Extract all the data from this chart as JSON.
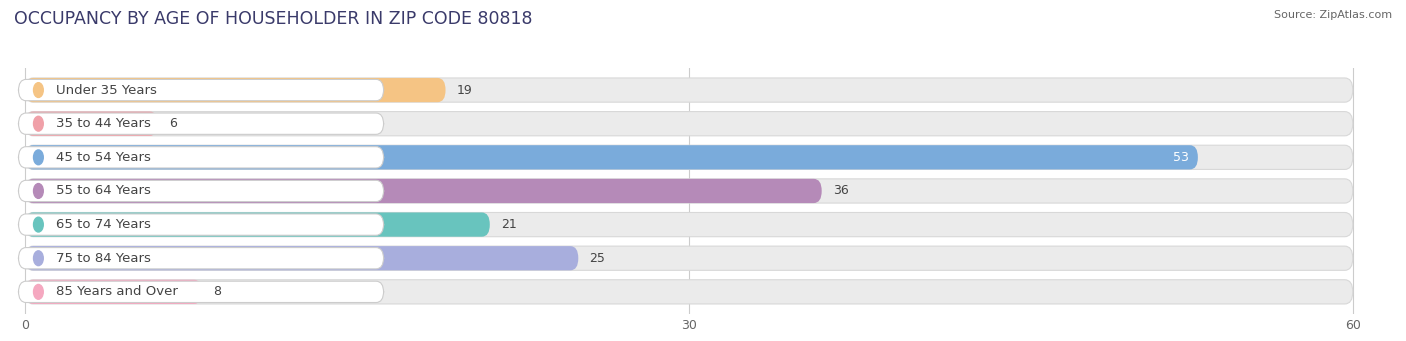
{
  "title": "OCCUPANCY BY AGE OF HOUSEHOLDER IN ZIP CODE 80818",
  "source": "Source: ZipAtlas.com",
  "categories": [
    "Under 35 Years",
    "35 to 44 Years",
    "45 to 54 Years",
    "55 to 64 Years",
    "65 to 74 Years",
    "75 to 84 Years",
    "85 Years and Over"
  ],
  "values": [
    19,
    6,
    53,
    36,
    21,
    25,
    8
  ],
  "bar_colors": [
    "#f5c484",
    "#f0a0a8",
    "#7aabdb",
    "#b58ab8",
    "#68c4be",
    "#a8aedd",
    "#f5a8c0"
  ],
  "xlim": [
    0,
    60
  ],
  "xticks": [
    0,
    30,
    60
  ],
  "background_color": "#ffffff",
  "bar_bg_color": "#ebebeb",
  "title_fontsize": 12.5,
  "label_fontsize": 9.5,
  "value_fontsize": 9,
  "fig_width": 14.06,
  "fig_height": 3.41,
  "value_inside_threshold": 45
}
